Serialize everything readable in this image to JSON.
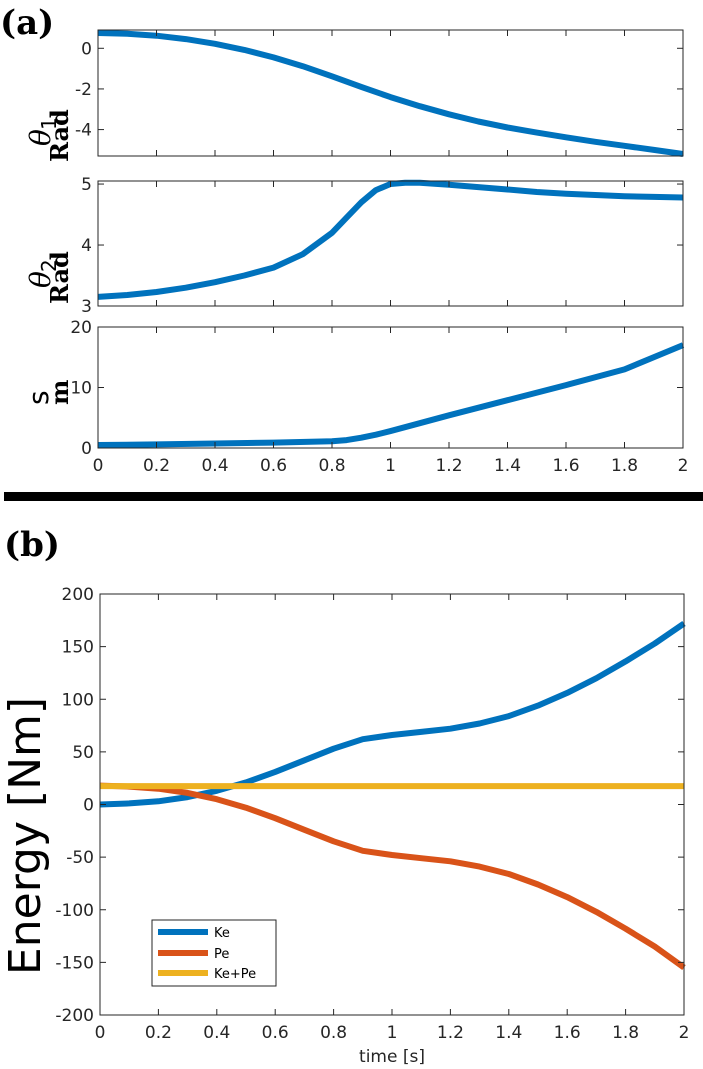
{
  "panel_labels": {
    "a": "(a)",
    "b": "(b)"
  },
  "colors": {
    "ke": "#0072BD",
    "pe": "#D95319",
    "sum": "#EDB120",
    "axis": "#262626",
    "divider": "#000000"
  },
  "chart_data": [
    {
      "id": "theta1",
      "type": "line",
      "title": "",
      "xlabel": "",
      "ylabel_symbol": "θ",
      "ylabel_sub": "1",
      "ylabel_unit": "Rad",
      "xlim": [
        0,
        2
      ],
      "ylim": [
        -5.3,
        0.9
      ],
      "xticks": [
        "0",
        "0.2",
        "0.4",
        "0.6",
        "0.8",
        "1",
        "1.2",
        "1.4",
        "1.6",
        "1.8",
        "2"
      ],
      "yticks": [
        0,
        -2,
        -4
      ],
      "ytick_labels": [
        "0",
        "-2",
        "-4"
      ],
      "show_xtick_labels": false,
      "series": [
        {
          "color": "#0072BD",
          "x": [
            0,
            0.1,
            0.2,
            0.3,
            0.4,
            0.5,
            0.6,
            0.7,
            0.8,
            0.9,
            1.0,
            1.1,
            1.2,
            1.3,
            1.4,
            1.5,
            1.6,
            1.7,
            1.8,
            1.9,
            2.0
          ],
          "y": [
            0.75,
            0.72,
            0.62,
            0.45,
            0.22,
            -0.08,
            -0.45,
            -0.88,
            -1.38,
            -1.9,
            -2.4,
            -2.85,
            -3.25,
            -3.6,
            -3.9,
            -4.15,
            -4.38,
            -4.6,
            -4.8,
            -5.0,
            -5.2
          ]
        }
      ]
    },
    {
      "id": "theta2",
      "type": "line",
      "title": "",
      "xlabel": "",
      "ylabel_symbol": "θ",
      "ylabel_sub": "2",
      "ylabel_unit": "Rad",
      "xlim": [
        0,
        2
      ],
      "ylim": [
        3,
        5.05
      ],
      "xticks": [
        "0",
        "0.2",
        "0.4",
        "0.6",
        "0.8",
        "1",
        "1.2",
        "1.4",
        "1.6",
        "1.8",
        "2"
      ],
      "yticks": [
        3,
        4,
        5
      ],
      "ytick_labels": [
        "3",
        "4",
        "5"
      ],
      "show_xtick_labels": false,
      "series": [
        {
          "color": "#0072BD",
          "x": [
            0,
            0.1,
            0.2,
            0.3,
            0.4,
            0.5,
            0.6,
            0.7,
            0.8,
            0.85,
            0.9,
            0.95,
            1.0,
            1.05,
            1.1,
            1.2,
            1.3,
            1.4,
            1.5,
            1.6,
            1.7,
            1.8,
            1.9,
            2.0
          ],
          "y": [
            3.15,
            3.18,
            3.23,
            3.3,
            3.39,
            3.5,
            3.63,
            3.85,
            4.2,
            4.45,
            4.7,
            4.9,
            5.0,
            5.02,
            5.02,
            4.99,
            4.95,
            4.91,
            4.87,
            4.84,
            4.82,
            4.8,
            4.79,
            4.78
          ]
        }
      ]
    },
    {
      "id": "s",
      "type": "line",
      "title": "",
      "xlabel": "",
      "ylabel_symbol": "s",
      "ylabel_sub": "",
      "ylabel_unit": "m",
      "xlim": [
        0,
        2
      ],
      "ylim": [
        0,
        20
      ],
      "xticks": [
        "0",
        "0.2",
        "0.4",
        "0.6",
        "0.8",
        "1",
        "1.2",
        "1.4",
        "1.6",
        "1.8",
        "2"
      ],
      "yticks": [
        0,
        10,
        20
      ],
      "ytick_labels": [
        "0",
        "10",
        "20"
      ],
      "show_xtick_labels": true,
      "series": [
        {
          "color": "#0072BD",
          "x": [
            0,
            0.2,
            0.4,
            0.6,
            0.8,
            0.85,
            0.9,
            0.95,
            1.0,
            1.1,
            1.2,
            1.4,
            1.6,
            1.8,
            2.0
          ],
          "y": [
            0.5,
            0.6,
            0.75,
            0.9,
            1.1,
            1.3,
            1.7,
            2.2,
            2.8,
            4.1,
            5.4,
            7.9,
            10.4,
            13.0,
            17.0
          ]
        }
      ]
    },
    {
      "id": "energy",
      "type": "line",
      "title": "",
      "xlabel": "time [s]",
      "ylabel": "Energy [Nm]",
      "xlim": [
        0,
        2
      ],
      "ylim": [
        -200,
        200
      ],
      "xticks": [
        "0",
        "0.2",
        "0.4",
        "0.6",
        "0.8",
        "1",
        "1.2",
        "1.4",
        "1.6",
        "1.8",
        "2"
      ],
      "yticks": [
        200,
        150,
        100,
        50,
        0,
        -50,
        -100,
        -150,
        -200
      ],
      "ytick_labels": [
        "200",
        "150",
        "100",
        "50",
        "0",
        "-50",
        "-100",
        "-150",
        "-200"
      ],
      "show_xtick_labels": true,
      "legend": "bottom-left",
      "series": [
        {
          "name": "Ke",
          "color": "#0072BD",
          "x": [
            0,
            0.1,
            0.2,
            0.3,
            0.4,
            0.5,
            0.6,
            0.7,
            0.8,
            0.9,
            1.0,
            1.1,
            1.2,
            1.3,
            1.4,
            1.5,
            1.6,
            1.7,
            1.8,
            1.9,
            2.0
          ],
          "y": [
            0,
            1,
            3,
            7,
            13,
            21,
            31,
            42,
            53,
            62,
            66,
            69,
            72,
            77,
            84,
            94,
            106,
            120,
            136,
            153,
            172
          ]
        },
        {
          "name": "Pe",
          "color": "#D95319",
          "x": [
            0,
            0.1,
            0.2,
            0.3,
            0.4,
            0.5,
            0.6,
            0.7,
            0.8,
            0.9,
            1.0,
            1.1,
            1.2,
            1.3,
            1.4,
            1.5,
            1.6,
            1.7,
            1.8,
            1.9,
            2.0
          ],
          "y": [
            18,
            17,
            15,
            11,
            5,
            -3,
            -13,
            -24,
            -35,
            -44,
            -48,
            -51,
            -54,
            -59,
            -66,
            -76,
            -88,
            -102,
            -118,
            -135,
            -155
          ]
        },
        {
          "name": "Ke+Pe",
          "color": "#EDB120",
          "x": [
            0,
            2
          ],
          "y": [
            17.5,
            17.5
          ]
        }
      ]
    }
  ]
}
